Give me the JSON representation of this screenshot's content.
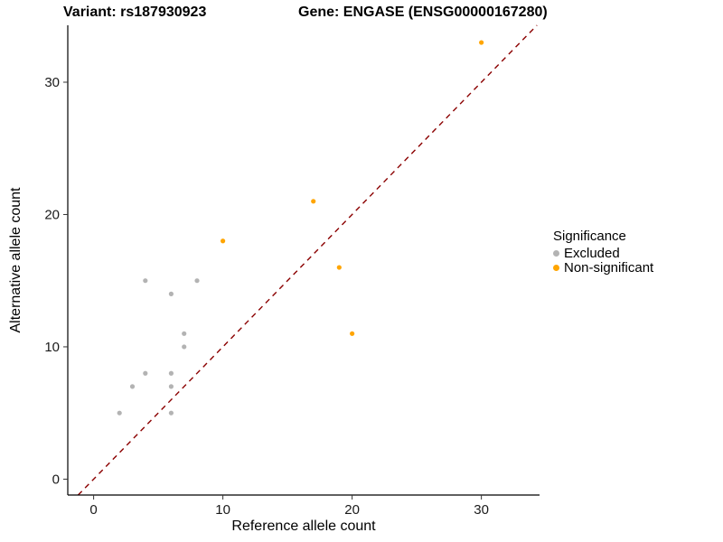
{
  "titles": {
    "left": "Variant: rs187930923",
    "right": "Gene: ENGASE (ENSG00000167280)"
  },
  "chart_data": {
    "type": "scatter",
    "xlabel": "Reference allele count",
    "ylabel": "Alternative allele count",
    "xlim": [
      -2,
      34.5
    ],
    "ylim": [
      -1.2,
      34.3
    ],
    "xticks": [
      0,
      10,
      20,
      30
    ],
    "yticks": [
      0,
      10,
      20,
      30
    ],
    "grid": "off",
    "identity_line": {
      "style": "dashed",
      "color": "#8B0000"
    },
    "legend": {
      "title": "Significance",
      "position": "right"
    },
    "series": [
      {
        "name": "Excluded",
        "color": "#B3B3B3",
        "points": [
          [
            2,
            5
          ],
          [
            3,
            7
          ],
          [
            4,
            8
          ],
          [
            4,
            15
          ],
          [
            6,
            5
          ],
          [
            6,
            7
          ],
          [
            6,
            8
          ],
          [
            6,
            14
          ],
          [
            7,
            10
          ],
          [
            7,
            11
          ],
          [
            8,
            15
          ]
        ]
      },
      {
        "name": "Non-significant",
        "color": "#FFA500",
        "points": [
          [
            10,
            18
          ],
          [
            17,
            21
          ],
          [
            19,
            16
          ],
          [
            20,
            11
          ],
          [
            30,
            33
          ]
        ]
      }
    ]
  }
}
